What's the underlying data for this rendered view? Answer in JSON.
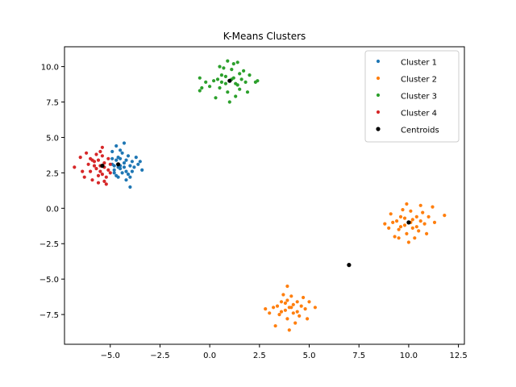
{
  "chart_data": {
    "type": "scatter",
    "title": "K-Means Clusters",
    "xlabel": "",
    "ylabel": "",
    "xlim": [
      -7.3,
      12.8
    ],
    "ylim": [
      -9.6,
      11.4
    ],
    "xticks": [
      -5.0,
      -2.5,
      0.0,
      2.5,
      5.0,
      7.5,
      10.0,
      12.5
    ],
    "xtick_labels": [
      "−5.0",
      "−2.5",
      "0.0",
      "2.5",
      "5.0",
      "7.5",
      "10.0",
      "12.5"
    ],
    "yticks": [
      -7.5,
      -5.0,
      -2.5,
      0.0,
      2.5,
      5.0,
      7.5,
      10.0
    ],
    "ytick_labels": [
      "−7.5",
      "−5.0",
      "−2.5",
      "0.0",
      "2.5",
      "5.0",
      "7.5",
      "10.0"
    ],
    "grid": false,
    "legend_position": "top-right",
    "series": [
      {
        "name": "Cluster 1",
        "color": "#1f77b4",
        "points": [
          [
            -4.9,
            3.1
          ],
          [
            -4.7,
            3.4
          ],
          [
            -4.5,
            2.8
          ],
          [
            -4.3,
            3.2
          ],
          [
            -4.2,
            2.6
          ],
          [
            -4.0,
            3.0
          ],
          [
            -3.9,
            3.3
          ],
          [
            -4.6,
            3.6
          ],
          [
            -4.8,
            2.7
          ],
          [
            -4.4,
            3.9
          ],
          [
            -4.1,
            2.4
          ],
          [
            -3.8,
            2.9
          ],
          [
            -3.6,
            3.1
          ],
          [
            -3.4,
            2.7
          ],
          [
            -4.5,
            4.1
          ],
          [
            -4.7,
            4.4
          ],
          [
            -4.9,
            4.0
          ],
          [
            -4.3,
            4.6
          ],
          [
            -4.0,
            1.5
          ],
          [
            -4.2,
            2.0
          ],
          [
            -4.6,
            2.2
          ],
          [
            -4.8,
            2.5
          ],
          [
            -4.5,
            3.0
          ],
          [
            -4.3,
            2.9
          ],
          [
            -3.7,
            3.6
          ],
          [
            -4.1,
            3.7
          ],
          [
            -4.9,
            3.5
          ],
          [
            -4.6,
            2.9
          ],
          [
            -4.4,
            2.5
          ],
          [
            -3.5,
            3.3
          ],
          [
            -4.8,
            3.0
          ],
          [
            -4.2,
            3.4
          ],
          [
            -4.0,
            2.2
          ],
          [
            -3.9,
            2.6
          ],
          [
            -4.7,
            2.3
          ],
          [
            -4.5,
            3.5
          ]
        ]
      },
      {
        "name": "Cluster 2",
        "color": "#ff7f0e",
        "points": [
          [
            4.0,
            -7.0
          ],
          [
            4.2,
            -6.8
          ],
          [
            3.8,
            -7.2
          ],
          [
            4.4,
            -7.3
          ],
          [
            3.6,
            -6.6
          ],
          [
            4.6,
            -6.9
          ],
          [
            3.5,
            -7.5
          ],
          [
            4.8,
            -7.1
          ],
          [
            4.1,
            -6.2
          ],
          [
            3.9,
            -7.8
          ],
          [
            3.2,
            -7.0
          ],
          [
            5.0,
            -6.6
          ],
          [
            4.3,
            -8.1
          ],
          [
            3.7,
            -6.1
          ],
          [
            4.5,
            -7.6
          ],
          [
            3.4,
            -6.9
          ],
          [
            3.0,
            -7.4
          ],
          [
            4.7,
            -6.3
          ],
          [
            3.9,
            -5.5
          ],
          [
            4.0,
            -8.6
          ],
          [
            3.3,
            -8.3
          ],
          [
            4.9,
            -7.8
          ],
          [
            5.3,
            -7.0
          ],
          [
            2.8,
            -7.1
          ],
          [
            4.1,
            -7.0
          ],
          [
            3.8,
            -6.7
          ],
          [
            4.4,
            -6.6
          ],
          [
            3.6,
            -7.3
          ],
          [
            4.2,
            -7.4
          ],
          [
            3.9,
            -6.5
          ],
          [
            10.0,
            -1.0
          ],
          [
            10.2,
            -0.8
          ],
          [
            9.8,
            -1.2
          ],
          [
            10.4,
            -1.3
          ],
          [
            9.6,
            -0.6
          ],
          [
            10.6,
            -0.9
          ],
          [
            9.5,
            -1.5
          ],
          [
            10.8,
            -1.1
          ],
          [
            10.1,
            -0.2
          ],
          [
            9.9,
            -1.8
          ],
          [
            9.2,
            -1.0
          ],
          [
            11.0,
            -0.6
          ],
          [
            10.3,
            -2.1
          ],
          [
            9.7,
            -0.1
          ],
          [
            10.5,
            -1.6
          ],
          [
            9.4,
            -0.9
          ],
          [
            9.0,
            -1.4
          ],
          [
            10.7,
            -0.3
          ],
          [
            9.9,
            0.3
          ],
          [
            10.0,
            -2.4
          ],
          [
            9.3,
            -2.0
          ],
          [
            10.9,
            -1.8
          ],
          [
            11.3,
            -1.0
          ],
          [
            8.8,
            -1.1
          ],
          [
            11.8,
            -0.5
          ],
          [
            10.1,
            -1.0
          ],
          [
            9.8,
            -0.7
          ],
          [
            10.4,
            -0.6
          ],
          [
            9.6,
            -1.3
          ],
          [
            10.2,
            -1.4
          ],
          [
            11.2,
            0.1
          ],
          [
            9.1,
            -0.4
          ],
          [
            10.6,
            0.2
          ],
          [
            9.5,
            -2.1
          ]
        ]
      },
      {
        "name": "Cluster 3",
        "color": "#2ca02c",
        "points": [
          [
            1.0,
            9.0
          ],
          [
            1.2,
            9.2
          ],
          [
            0.8,
            8.8
          ],
          [
            1.4,
            8.7
          ],
          [
            0.6,
            9.4
          ],
          [
            1.6,
            9.1
          ],
          [
            0.5,
            8.5
          ],
          [
            1.8,
            8.9
          ],
          [
            1.1,
            9.8
          ],
          [
            0.9,
            8.2
          ],
          [
            0.2,
            9.0
          ],
          [
            2.0,
            9.4
          ],
          [
            1.3,
            7.9
          ],
          [
            0.7,
            9.9
          ],
          [
            1.5,
            8.4
          ],
          [
            0.4,
            9.1
          ],
          [
            0.0,
            8.6
          ],
          [
            1.7,
            9.7
          ],
          [
            0.9,
            10.4
          ],
          [
            1.0,
            7.5
          ],
          [
            0.3,
            7.8
          ],
          [
            1.9,
            8.2
          ],
          [
            2.3,
            8.9
          ],
          [
            -0.2,
            8.9
          ],
          [
            -0.4,
            8.5
          ],
          [
            -0.5,
            9.2
          ],
          [
            2.4,
            9.0
          ],
          [
            1.2,
            10.2
          ],
          [
            0.5,
            10.0
          ],
          [
            1.4,
            10.3
          ],
          [
            1.1,
            9.1
          ],
          [
            0.8,
            9.3
          ],
          [
            1.3,
            8.8
          ],
          [
            0.6,
            8.9
          ],
          [
            1.5,
            9.5
          ],
          [
            -0.5,
            8.3
          ]
        ]
      },
      {
        "name": "Cluster 4",
        "color": "#d62728",
        "points": [
          [
            -5.5,
            3.0
          ],
          [
            -5.3,
            3.2
          ],
          [
            -5.7,
            2.8
          ],
          [
            -5.1,
            2.7
          ],
          [
            -5.9,
            3.4
          ],
          [
            -5.4,
            3.7
          ],
          [
            -5.0,
            3.1
          ],
          [
            -5.6,
            2.3
          ],
          [
            -5.8,
            3.0
          ],
          [
            -5.2,
            2.2
          ],
          [
            -6.0,
            2.6
          ],
          [
            -5.5,
            4.0
          ],
          [
            -5.3,
            1.9
          ],
          [
            -5.7,
            3.8
          ],
          [
            -6.1,
            3.1
          ],
          [
            -5.1,
            3.5
          ],
          [
            -5.9,
            2.0
          ],
          [
            -5.4,
            4.3
          ],
          [
            -6.4,
            2.6
          ],
          [
            -6.5,
            3.6
          ],
          [
            -6.8,
            2.9
          ],
          [
            -6.3,
            2.2
          ],
          [
            -5.2,
            1.7
          ],
          [
            -5.6,
            1.8
          ],
          [
            -6.2,
            3.9
          ],
          [
            -5.0,
            2.5
          ],
          [
            -5.5,
            2.6
          ],
          [
            -5.3,
            2.9
          ],
          [
            -5.8,
            3.3
          ],
          [
            -5.4,
            2.4
          ],
          [
            -6.0,
            3.5
          ],
          [
            -5.6,
            3.4
          ]
        ]
      },
      {
        "name": "Centroids",
        "color": "#000000",
        "points": [
          [
            -4.6,
            3.1
          ],
          [
            1.0,
            9.0
          ],
          [
            -5.4,
            3.0
          ],
          [
            10.0,
            -1.0
          ],
          [
            7.0,
            -4.0
          ]
        ]
      }
    ]
  }
}
